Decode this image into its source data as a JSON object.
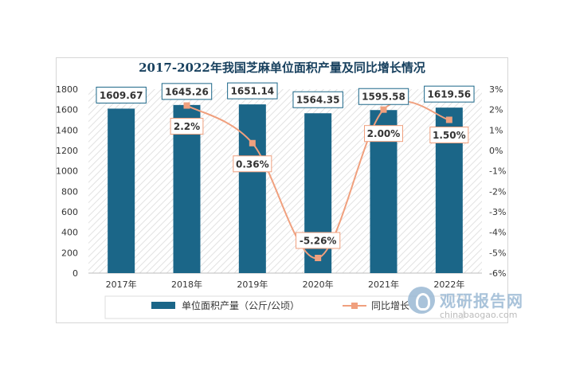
{
  "chart_data": {
    "type": "bar+line",
    "title": "2017-2022年我国芝麻单位面积产量及同比增长情况",
    "categories": [
      "2017年",
      "2018年",
      "2019年",
      "2020年",
      "2021年",
      "2022年"
    ],
    "series": [
      {
        "name": "单位面积产量（公斤/公顷）",
        "type": "bar",
        "axis": "left",
        "color": "#1b6688",
        "values": [
          1609.67,
          1645.26,
          1651.14,
          1564.35,
          1595.58,
          1619.56
        ],
        "labels": [
          "1609.67",
          "1645.26",
          "1651.14",
          "1564.35",
          "1595.58",
          "1619.56"
        ]
      },
      {
        "name": "同比增长",
        "type": "line",
        "axis": "right",
        "color": "#f0a07e",
        "values": [
          null,
          2.2,
          0.36,
          -5.26,
          2.0,
          1.5
        ],
        "labels": [
          "",
          "2.2%",
          "0.36%",
          "-5.26%",
          "2.00%",
          "1.50%"
        ]
      }
    ],
    "y_left": {
      "min": 0,
      "max": 1800,
      "step": 200,
      "ticks": [
        "0",
        "200",
        "400",
        "600",
        "800",
        "1000",
        "1200",
        "1400",
        "1600",
        "1800"
      ]
    },
    "y_right": {
      "min": -6,
      "max": 3,
      "step": 1,
      "ticks": [
        "-6%",
        "-5%",
        "-4%",
        "-3%",
        "-2%",
        "-1%",
        "0%",
        "1%",
        "2%",
        "3%"
      ]
    },
    "grid": false,
    "legend_position": "bottom"
  },
  "watermark": {
    "name_cn": "观研报告网",
    "url": "chinabaogao.com"
  }
}
